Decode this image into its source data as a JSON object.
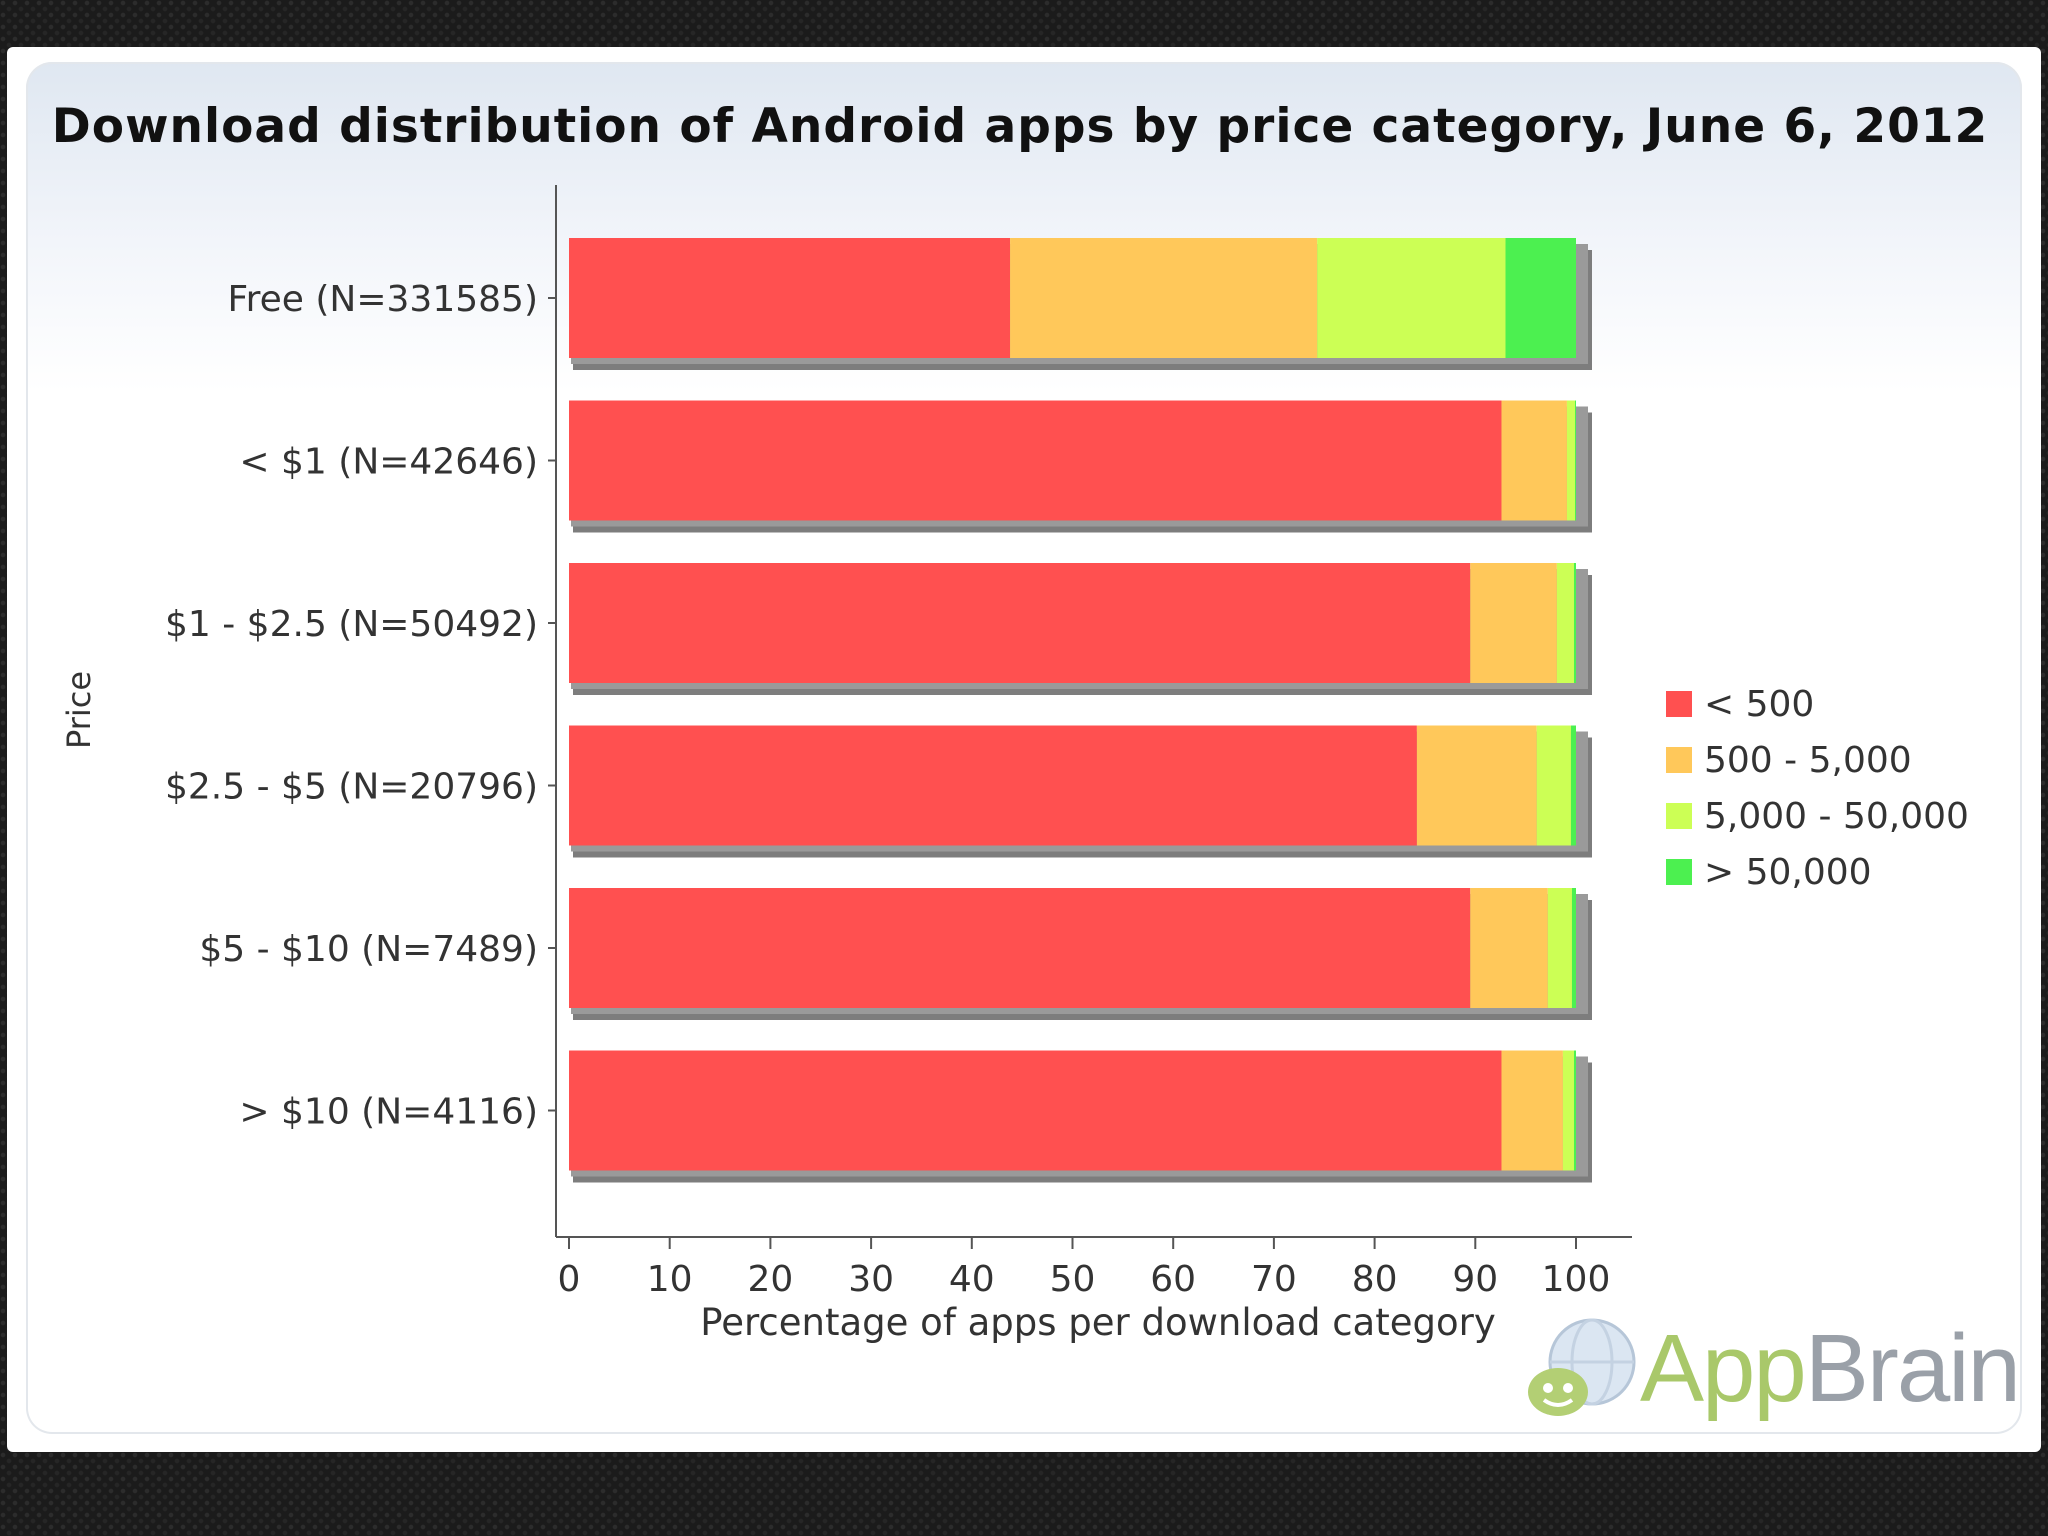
{
  "chart_data": {
    "type": "bar",
    "orientation": "horizontal",
    "stacked": true,
    "title": "Download distribution of Android apps by price category, June 6, 2012",
    "xlabel": "Percentage of apps per download category",
    "ylabel": "Price",
    "xlim": [
      0,
      100
    ],
    "xticks": [
      0,
      10,
      20,
      30,
      40,
      50,
      60,
      70,
      80,
      90,
      100
    ],
    "categories": [
      "Free (N=331585)",
      "< $1 (N=42646)",
      "$1 - $2.5 (N=50492)",
      "$2.5 - $5 (N=20796)",
      "$5 - $10 (N=7489)",
      "> $10 (N=4116)"
    ],
    "series": [
      {
        "name": "< 500",
        "color": "#ff5050",
        "values": [
          43.8,
          92.6,
          89.5,
          84.2,
          89.5,
          92.6
        ]
      },
      {
        "name": "500 - 5,000",
        "color": "#ffc85a",
        "values": [
          30.5,
          6.5,
          8.6,
          11.9,
          7.7,
          6.1
        ]
      },
      {
        "name": "5,000 - 50,000",
        "color": "#ccff55",
        "values": [
          18.7,
          0.8,
          1.7,
          3.4,
          2.4,
          1.1
        ]
      },
      {
        "name": "> 50,000",
        "color": "#4cf050",
        "values": [
          7.0,
          0.1,
          0.2,
          0.5,
          0.4,
          0.2
        ]
      }
    ],
    "legend_position": "right"
  },
  "branding": {
    "logo_text_a": "App",
    "logo_text_b": "Brain"
  }
}
